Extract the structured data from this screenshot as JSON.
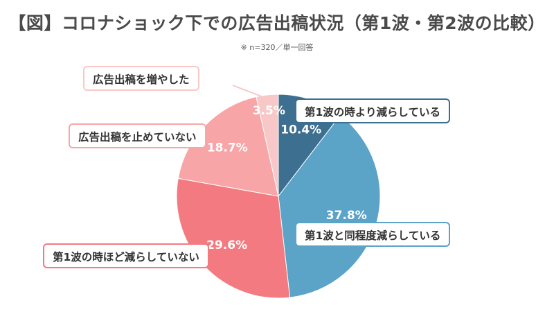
{
  "header": {
    "title": "【図】コロナショック下での広告出稿状況（第1波・第2波の比較）",
    "note": "※ n=320／単一回答"
  },
  "chart_data": {
    "type": "pie",
    "start_angle_deg": 0,
    "direction": "clockwise",
    "slices": [
      {
        "label": "第1波の時より減らしている",
        "value": 10.4,
        "value_label": "10.4%",
        "color": "#3d6f91",
        "border": "#3d6f91"
      },
      {
        "label": "第1波と同程度減らしている",
        "value": 37.8,
        "value_label": "37.8%",
        "color": "#5ba3c7",
        "border": "#5ba3c7"
      },
      {
        "label": "第1波の時ほど減らしていない",
        "value": 29.6,
        "value_label": "29.6%",
        "color": "#f27a80",
        "border": "#f27a80"
      },
      {
        "label": "広告出稿を止めていない",
        "value": 18.7,
        "value_label": "18.7%",
        "color": "#f7a5a7",
        "border": "#f7a5a7"
      },
      {
        "label": "広告出稿を増やした",
        "value": 3.5,
        "value_label": "3.5%",
        "color": "#f8c8c8",
        "border": "#f8c8c8"
      }
    ]
  }
}
